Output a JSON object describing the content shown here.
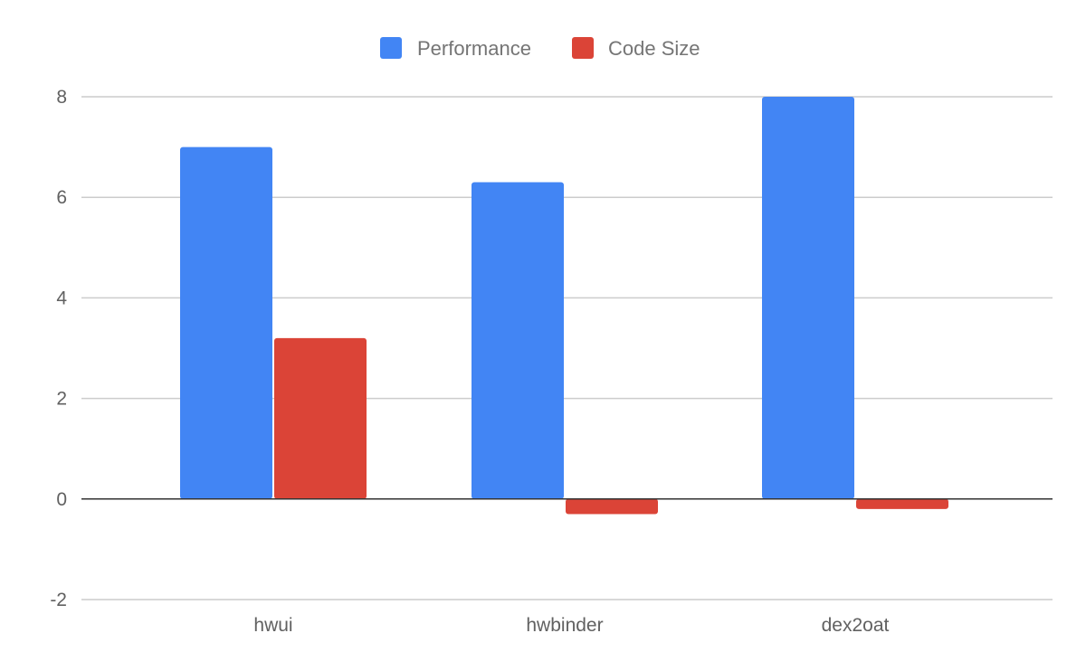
{
  "chart_data": {
    "type": "bar",
    "title": "",
    "xlabel": "",
    "ylabel": "",
    "categories": [
      "hwui",
      "hwbinder",
      "dex2oat"
    ],
    "series": [
      {
        "name": "Performance",
        "color": "#4285f4",
        "values": [
          7.0,
          6.3,
          8.0
        ]
      },
      {
        "name": "Code Size",
        "color": "#db4437",
        "values": [
          3.2,
          -0.3,
          -0.2
        ]
      }
    ],
    "ylim": [
      -2,
      8
    ],
    "yticks": [
      -2,
      0,
      2,
      4,
      6,
      8
    ],
    "legend_position": "top-center",
    "grid": true
  }
}
